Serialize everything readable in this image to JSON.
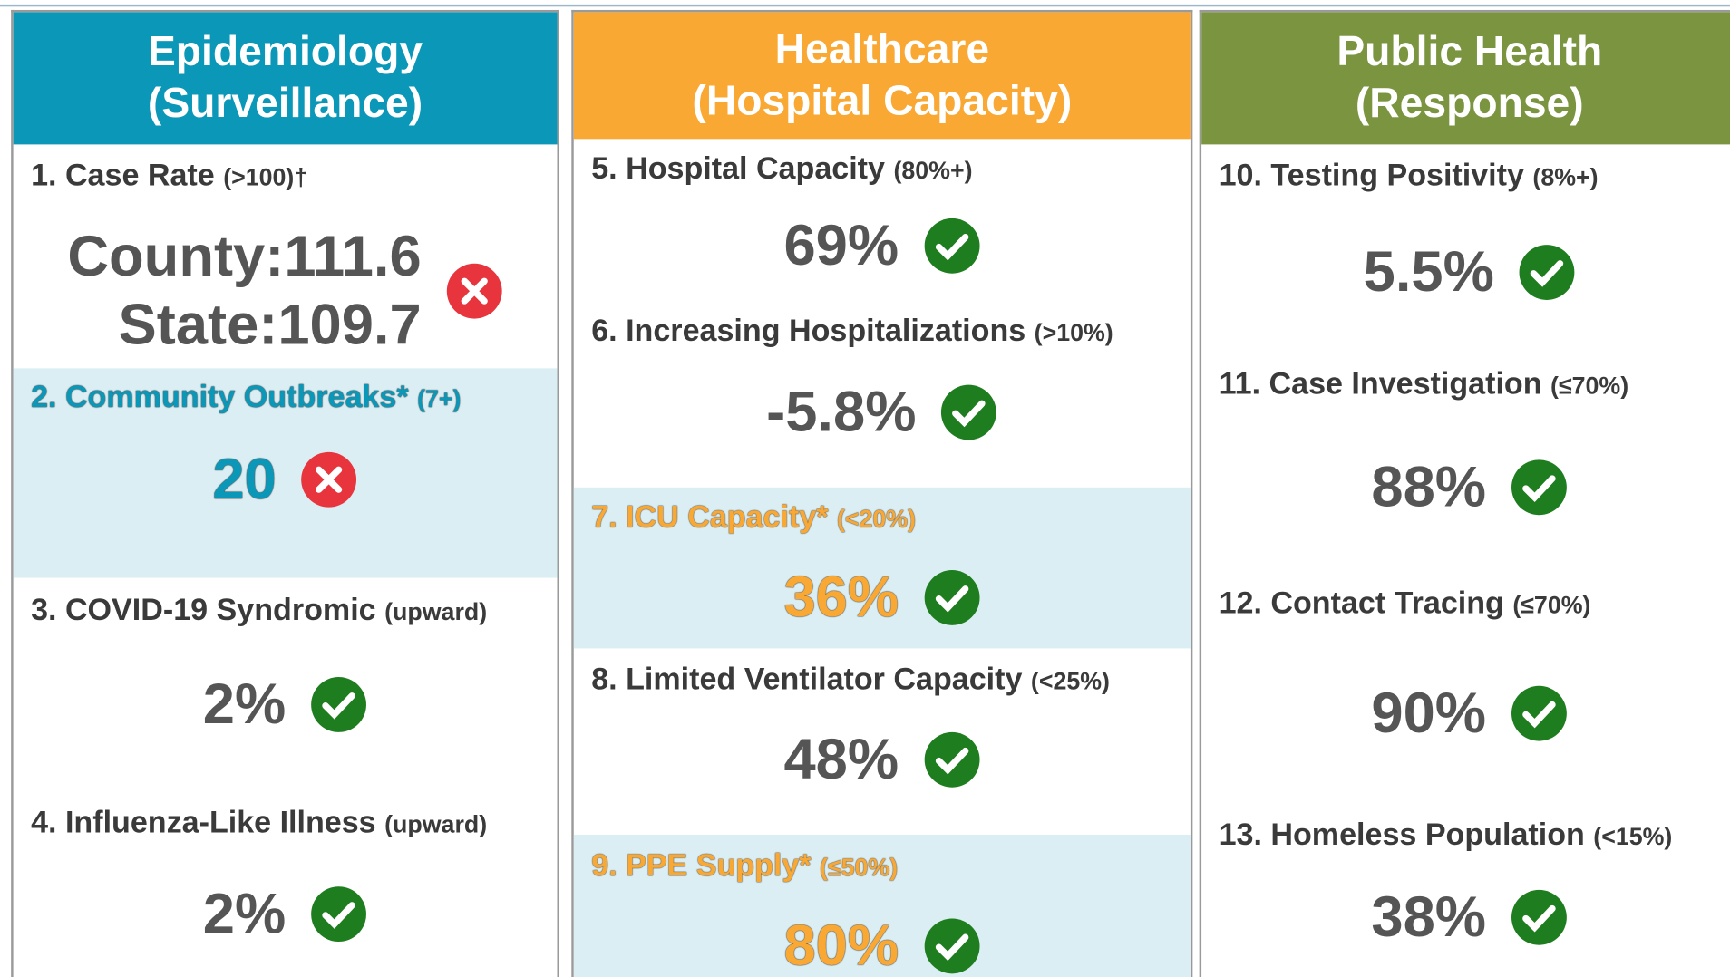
{
  "columns": [
    {
      "title": "Epidemiology",
      "subtitle": "(Surveillance)",
      "color": "#0b97b8",
      "items": [
        {
          "label": "1. Case Rate",
          "threshold": "(>100)†",
          "values": [
            "County:111.6",
            "State:109.7"
          ],
          "status": "fail"
        },
        {
          "label": "2. Community Outbreaks*",
          "threshold": "(7+)",
          "values": [
            "20"
          ],
          "status": "fail",
          "highlight": true
        },
        {
          "label": "3. COVID-19 Syndromic",
          "threshold": "(upward)",
          "values": [
            "2%"
          ],
          "status": "pass"
        },
        {
          "label": "4. Influenza-Like Illness",
          "threshold": "(upward)",
          "values": [
            "2%"
          ],
          "status": "pass"
        }
      ]
    },
    {
      "title": "Healthcare",
      "subtitle": "(Hospital Capacity)",
      "color": "#f9a834",
      "items": [
        {
          "label": "5. Hospital Capacity",
          "threshold": "(80%+)",
          "values": [
            "69%"
          ],
          "status": "pass"
        },
        {
          "label": "6. Increasing Hospitalizations",
          "threshold": "(>10%)",
          "values": [
            "-5.8%"
          ],
          "status": "pass"
        },
        {
          "label": "7. ICU Capacity*",
          "threshold": "(<20%)",
          "values": [
            "36%"
          ],
          "status": "pass",
          "highlight": true
        },
        {
          "label": "8. Limited Ventilator Capacity",
          "threshold": "(<25%)",
          "values": [
            "48%"
          ],
          "status": "pass"
        },
        {
          "label": "9. PPE Supply*",
          "threshold": "(≤50%)",
          "values": [
            "80%"
          ],
          "status": "pass",
          "highlight": true
        }
      ]
    },
    {
      "title": "Public Health",
      "subtitle": "(Response)",
      "color": "#7a9440",
      "items": [
        {
          "label": "10. Testing Positivity",
          "threshold": "(8%+)",
          "values": [
            "5.5%"
          ],
          "status": "pass"
        },
        {
          "label": "11. Case Investigation",
          "threshold": "(≤70%)",
          "values": [
            "88%"
          ],
          "status": "pass"
        },
        {
          "label": "12. Contact Tracing",
          "threshold": "(≤70%)",
          "values": [
            "90%"
          ],
          "status": "pass"
        },
        {
          "label": "13. Homeless Population",
          "threshold": "(<15%)",
          "values": [
            "38%"
          ],
          "status": "pass"
        }
      ]
    }
  ]
}
